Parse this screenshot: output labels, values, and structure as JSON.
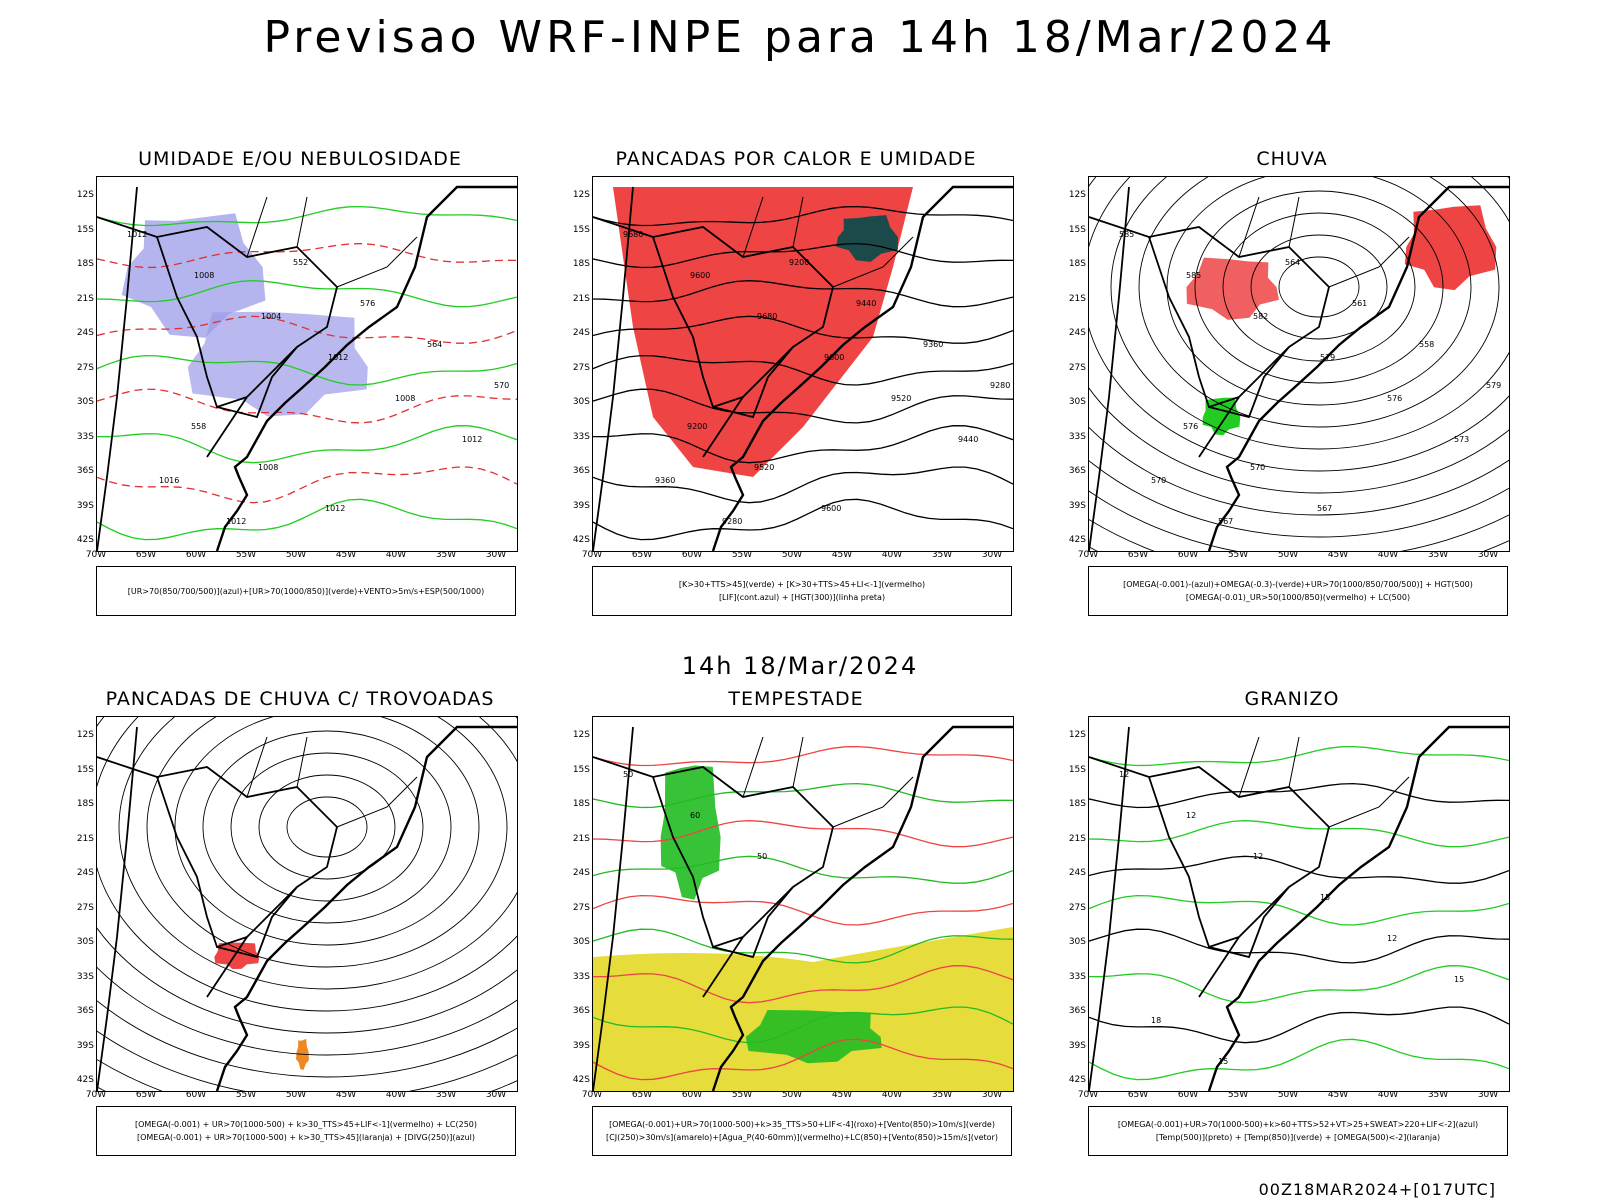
{
  "header": {
    "title": "Previsao WRF-INPE  para 14h 18/Mar/2024",
    "subtitle_time": "14h 18/Mar/2024",
    "footer": "00Z18MAR2024+[017UTC]"
  },
  "axes": {
    "lat_labels": [
      "12S",
      "15S",
      "18S",
      "21S",
      "24S",
      "27S",
      "30S",
      "33S",
      "36S",
      "39S",
      "42S"
    ],
    "lon_labels": [
      "70W",
      "65W",
      "60W",
      "55W",
      "50W",
      "45W",
      "40W",
      "35W",
      "30W"
    ]
  },
  "panels": [
    {
      "id": "umidade",
      "title": "UMIDADE E/OU NEBULOSIDADE",
      "legend_lines": [
        "[UR>70(850/700/500)](azul)+[UR>70(1000/850)](verde)+VENTO>5m/s+ESP(500/1000)"
      ],
      "contour_labels": [
        "1012",
        "1008",
        "1004",
        "1012",
        "1008",
        "1012",
        "1016",
        "1012",
        "552",
        "576",
        "564",
        "570",
        "558",
        "1008",
        "1012"
      ],
      "colors": {
        "fill_primary": "#9b9be8",
        "contour_primary": "#22cc22",
        "contour_secondary": "#e03030"
      }
    },
    {
      "id": "pancadas",
      "title": "PANCADAS POR CALOR E UMIDADE",
      "legend_lines": [
        "[K>30+TTS>45](verde) + [K>30+TTS>45+LI<-1](vermelho)",
        "[LIF](cont.azul) + [HGT(300)](linha preta)"
      ],
      "contour_labels": [
        "9680",
        "9600",
        "9680",
        "9600",
        "9520",
        "9440",
        "9360",
        "9280",
        "9200",
        "9440",
        "9360",
        "9280",
        "9200",
        "9520",
        "9600"
      ],
      "colors": {
        "fill_primary": "#ee4444",
        "contour_primary": "#3030ee",
        "contour_secondary": "#1c4a4a"
      }
    },
    {
      "id": "chuva",
      "title": "CHUVA",
      "legend_lines": [
        "[OMEGA(-0.001)-(azul)+OMEGA(-0.3)-(verde)+UR>70(1000/850/700/500)] + HGT(500)",
        "[OMEGA(-0.01)_UR>50(1000/850)(vermelho) + LC(500)"
      ],
      "contour_labels": [
        "585",
        "585",
        "582",
        "579",
        "576",
        "573",
        "570",
        "567",
        "564",
        "561",
        "558",
        "579",
        "576",
        "570",
        "567"
      ],
      "colors": {
        "fill_primary": "#ee4444",
        "contour_primary": "#000000",
        "contour_secondary": "#22cc22"
      }
    },
    {
      "id": "trovoadas",
      "title": "PANCADAS DE CHUVA C/ TROVOADAS",
      "legend_lines": [
        "[OMEGA(-0.001) + UR>70(1000-500) + k>30_TTS>45+LIF<-1](vermelho) + LC(250)",
        "[OMEGA(-0.001) + UR>70(1000-500) + k>30_TTS>45](laranja) + [DIVG(250)](azul)"
      ],
      "contour_labels": [],
      "colors": {
        "fill_primary": "#ee4444",
        "contour_primary": "#000000",
        "contour_secondary": "#ee8822"
      }
    },
    {
      "id": "tempestade",
      "title": "TEMPESTADE",
      "legend_lines": [
        "[OMEGA(-0.001)+UR>70(1000-500)+k>35_TTS>50+LIF<-4](roxo)+[Vento(850)>10m/s](verde)",
        "[CJ(250)>30m/s](amarelo)+[Agua_P(40-60mm)](vermelho)+LC(850)+[Vento(850)>15m/s](vetor)"
      ],
      "contour_labels": [
        "50",
        "60",
        "50"
      ],
      "colors": {
        "fill_primary": "#e6dc3c",
        "contour_primary": "#ee4444",
        "contour_secondary": "#22bb22"
      }
    },
    {
      "id": "granizo",
      "title": "GRANIZO",
      "legend_lines": [
        "[OMEGA(-0.001)+UR>70(1000-500)+k>60+TTS>52+VT>25+SWEAT>220+LIF<-2](azul)",
        "[Temp(500)](preto) + [Temp(850)](verde) + [OMEGA(500)<-2](laranja)"
      ],
      "contour_labels": [
        "12",
        "12",
        "12",
        "15",
        "12",
        "15",
        "18",
        "15"
      ],
      "colors": {
        "fill_primary": "#ffffff",
        "contour_primary": "#22cc22",
        "contour_secondary": "#000000"
      }
    }
  ]
}
